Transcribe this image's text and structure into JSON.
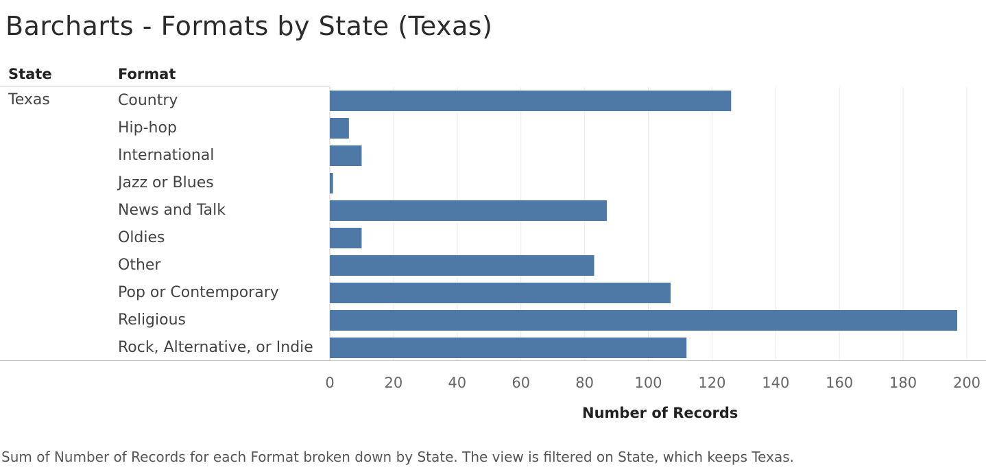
{
  "chart_data": {
    "type": "bar",
    "orientation": "horizontal",
    "title": "Barcharts - Formats by State (Texas)",
    "row_headers": {
      "state": "State",
      "format": "Format"
    },
    "state": "Texas",
    "categories": [
      "Country",
      "Hip-hop",
      "International",
      "Jazz or Blues",
      "News and Talk",
      "Oldies",
      "Other",
      "Pop or Contemporary",
      "Religious",
      "Rock, Alternative, or Indie"
    ],
    "values": [
      126,
      6,
      10,
      1,
      87,
      10,
      83,
      107,
      197,
      112
    ],
    "xlabel": "Number of Records",
    "ylabel": "",
    "xlim": [
      0,
      200
    ],
    "xticks": [
      0,
      20,
      40,
      60,
      80,
      100,
      120,
      140,
      160,
      180,
      200
    ],
    "grid": true,
    "bar_color": "#4e79a7",
    "caption": "Sum of Number of Records for each Format broken down by State.  The view is filtered on State, which keeps Texas."
  }
}
